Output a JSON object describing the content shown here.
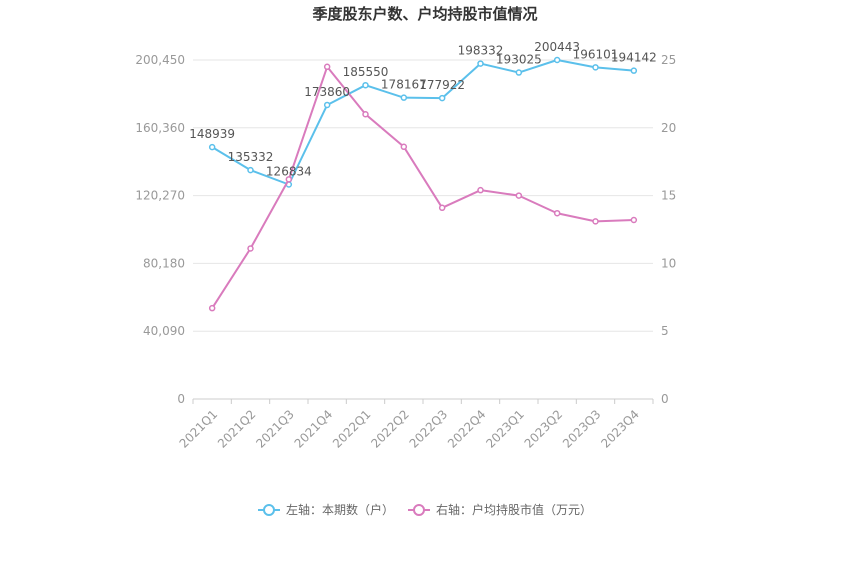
{
  "chart_data": {
    "type": "line",
    "title": "季度股东户数、户均持股市值情况",
    "categories": [
      "2021Q1",
      "2021Q2",
      "2021Q3",
      "2021Q4",
      "2022Q1",
      "2022Q2",
      "2022Q3",
      "2022Q4",
      "2023Q1",
      "2023Q2",
      "2023Q3",
      "2023Q4"
    ],
    "left_axis": {
      "ticks": [
        "0",
        "40,090",
        "80,180",
        "120,270",
        "160,360",
        "200,450"
      ],
      "ylim": [
        0,
        200450
      ]
    },
    "right_axis": {
      "ticks": [
        "0",
        "5",
        "10",
        "15",
        "20",
        "25"
      ],
      "ylim": [
        0,
        25
      ]
    },
    "series": [
      {
        "name": "左轴：本期数（户）",
        "axis": "left",
        "color": "#5bc0eb",
        "values": [
          148939,
          135332,
          126834,
          173860,
          185550,
          178167,
          177922,
          198332,
          193025,
          200443,
          196101,
          194142
        ],
        "labels": [
          "148939",
          "135332",
          "126834",
          "173860",
          "185550",
          "178167",
          "177922",
          "198332",
          "193025",
          "200443",
          "196101",
          "194142"
        ]
      },
      {
        "name": "右轴：户均持股市值（万元）",
        "axis": "right",
        "color": "#d97bbd",
        "values": [
          6.7,
          11.1,
          16.2,
          24.5,
          21.0,
          18.6,
          14.1,
          15.4,
          15.0,
          13.7,
          13.1,
          13.2
        ]
      }
    ],
    "grid": true,
    "legend_position": "bottom"
  }
}
